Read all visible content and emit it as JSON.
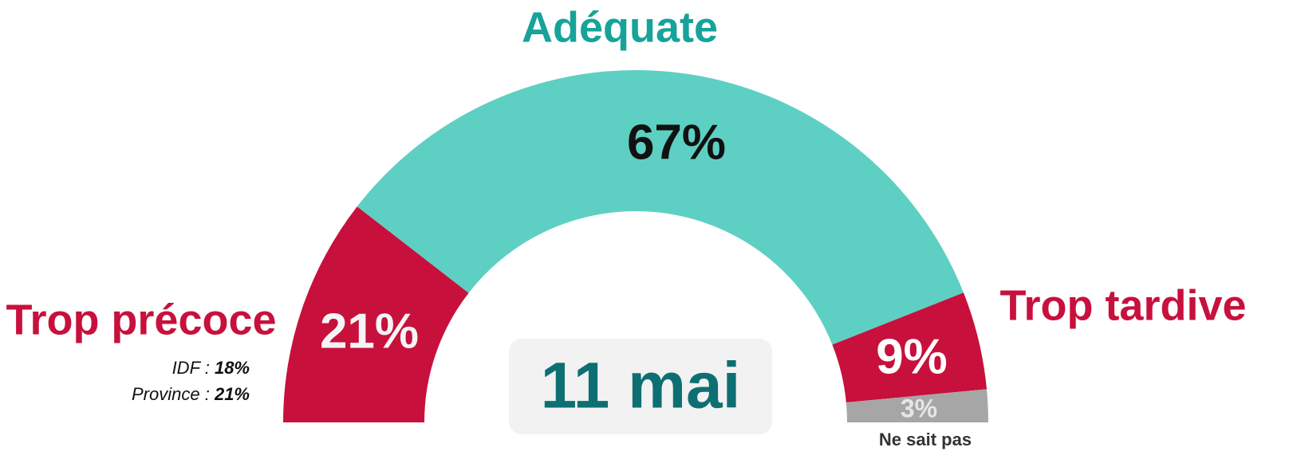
{
  "chart_data": {
    "type": "half-donut",
    "center_label": "11 mai",
    "categories": [
      "Trop précoce",
      "Adéquate",
      "Trop tardive",
      "Ne sait pas"
    ],
    "values": [
      21,
      67,
      9,
      3
    ],
    "value_labels": [
      "21%",
      "67%",
      "9%",
      "3%"
    ],
    "colors": [
      "#c8103c",
      "#5dd0c3",
      "#c8103c",
      "#a6a6a6"
    ],
    "breakdown": [
      {
        "label": "IDF :",
        "value": 18,
        "value_label": "18%"
      },
      {
        "label": "Province :",
        "value": 21,
        "value_label": "21%"
      }
    ]
  }
}
